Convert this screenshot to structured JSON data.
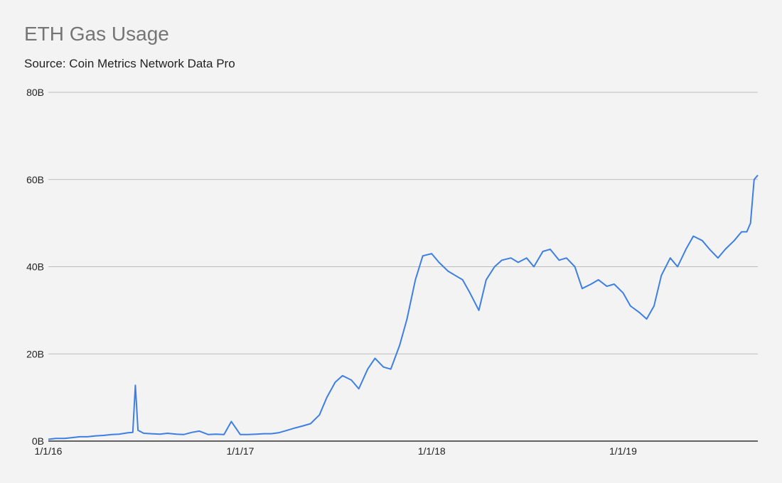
{
  "chart_data": {
    "type": "line",
    "title": "ETH Gas Usage",
    "subtitle": "Source: Coin Metrics Network Data Pro",
    "xlabel": "",
    "ylabel": "",
    "xlim": [
      "2016-01-01",
      "2019-09-15"
    ],
    "ylim": [
      0,
      80
    ],
    "y_ticks": [
      {
        "value": 0,
        "label": "0B"
      },
      {
        "value": 20,
        "label": "20B"
      },
      {
        "value": 40,
        "label": "40B"
      },
      {
        "value": 60,
        "label": "60B"
      },
      {
        "value": 80,
        "label": "80B"
      }
    ],
    "x_ticks": [
      {
        "value": "2016-01-01",
        "label": "1/1/16"
      },
      {
        "value": "2017-01-01",
        "label": "1/1/17"
      },
      {
        "value": "2018-01-01",
        "label": "1/1/18"
      },
      {
        "value": "2019-01-01",
        "label": "1/1/19"
      }
    ],
    "grid": true,
    "legend": "none",
    "series": [
      {
        "color": "#3d7fe3",
        "x": [
          "2016-01-01",
          "2016-01-15",
          "2016-02-01",
          "2016-02-15",
          "2016-03-01",
          "2016-03-15",
          "2016-04-01",
          "2016-04-15",
          "2016-05-01",
          "2016-05-15",
          "2016-06-01",
          "2016-06-10",
          "2016-06-15",
          "2016-06-20",
          "2016-07-01",
          "2016-07-15",
          "2016-08-01",
          "2016-08-15",
          "2016-09-01",
          "2016-09-15",
          "2016-10-01",
          "2016-10-15",
          "2016-11-01",
          "2016-11-15",
          "2016-12-01",
          "2016-12-15",
          "2017-01-01",
          "2017-01-15",
          "2017-02-01",
          "2017-02-15",
          "2017-03-01",
          "2017-03-15",
          "2017-04-01",
          "2017-04-15",
          "2017-05-01",
          "2017-05-15",
          "2017-06-01",
          "2017-06-15",
          "2017-07-01",
          "2017-07-15",
          "2017-08-01",
          "2017-08-15",
          "2017-09-01",
          "2017-09-15",
          "2017-10-01",
          "2017-10-15",
          "2017-11-01",
          "2017-11-15",
          "2017-12-01",
          "2017-12-15",
          "2018-01-01",
          "2018-01-15",
          "2018-02-01",
          "2018-02-15",
          "2018-03-01",
          "2018-03-15",
          "2018-04-01",
          "2018-04-15",
          "2018-05-01",
          "2018-05-15",
          "2018-06-01",
          "2018-06-15",
          "2018-07-01",
          "2018-07-15",
          "2018-08-01",
          "2018-08-15",
          "2018-09-01",
          "2018-09-15",
          "2018-10-01",
          "2018-10-15",
          "2018-11-01",
          "2018-11-15",
          "2018-12-01",
          "2018-12-15",
          "2019-01-01",
          "2019-01-15",
          "2019-02-01",
          "2019-02-15",
          "2019-03-01",
          "2019-03-15",
          "2019-04-01",
          "2019-04-15",
          "2019-05-01",
          "2019-05-15",
          "2019-06-01",
          "2019-06-15",
          "2019-07-01",
          "2019-07-15",
          "2019-08-01",
          "2019-08-15",
          "2019-08-25",
          "2019-09-01",
          "2019-09-08",
          "2019-09-15"
        ],
        "y": [
          0.4,
          0.6,
          0.6,
          0.8,
          1.0,
          1.0,
          1.2,
          1.3,
          1.5,
          1.6,
          1.9,
          2.0,
          12.8,
          2.5,
          1.8,
          1.7,
          1.6,
          1.8,
          1.6,
          1.5,
          2.0,
          2.3,
          1.5,
          1.6,
          1.5,
          4.5,
          1.5,
          1.5,
          1.6,
          1.7,
          1.7,
          1.9,
          2.5,
          3.0,
          3.5,
          4.0,
          6.0,
          10.0,
          13.5,
          15.0,
          14.0,
          12.0,
          16.5,
          19.0,
          17.0,
          16.5,
          22.0,
          28.0,
          37.0,
          42.5,
          43.0,
          41.0,
          39.0,
          38.0,
          37.0,
          34.0,
          30.0,
          37.0,
          40.0,
          41.5,
          42.0,
          41.0,
          42.0,
          40.0,
          43.5,
          44.0,
          41.5,
          42.0,
          40.0,
          35.0,
          36.0,
          37.0,
          35.5,
          36.0,
          34.0,
          31.0,
          29.5,
          28.0,
          31.0,
          38.0,
          42.0,
          40.0,
          44.0,
          47.0,
          46.0,
          44.0,
          42.0,
          44.0,
          46.0,
          48.0,
          48.0,
          50.0,
          60.0,
          61.0
        ]
      }
    ]
  }
}
